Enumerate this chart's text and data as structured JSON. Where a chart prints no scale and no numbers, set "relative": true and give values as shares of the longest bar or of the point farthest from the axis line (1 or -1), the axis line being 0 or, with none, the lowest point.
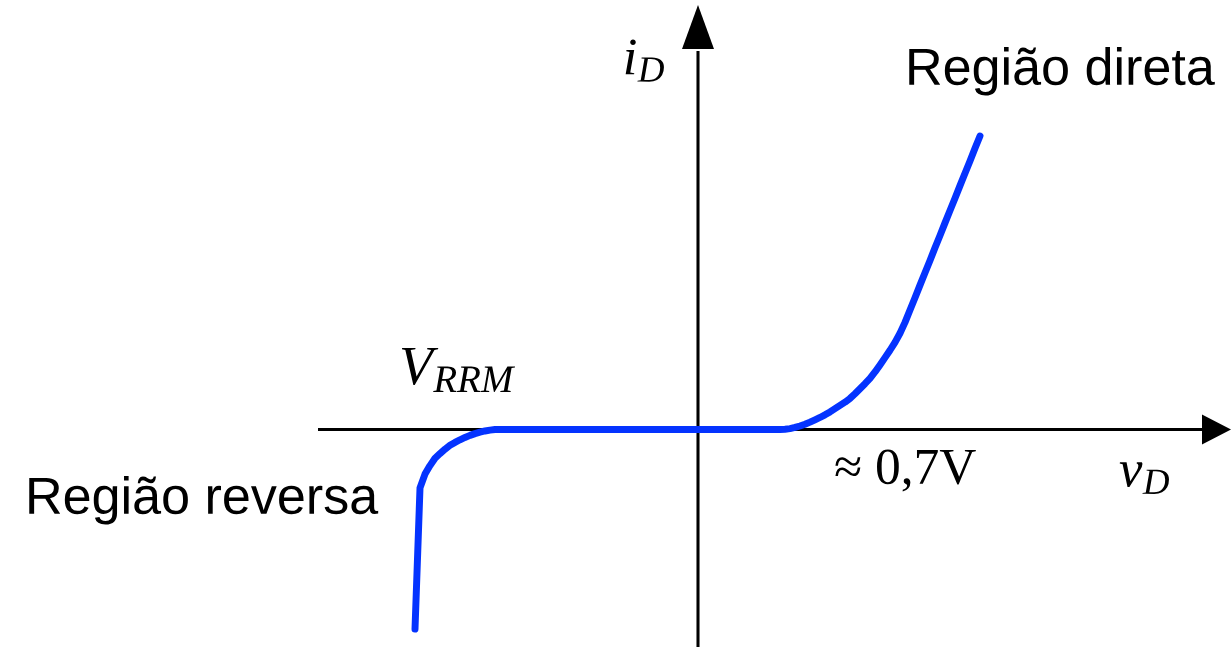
{
  "chart_data": {
    "type": "line",
    "relative": true,
    "xlabel": "v$_{D}$",
    "ylabel": "i$_{D}$",
    "line_style": "solid",
    "annotations": [
      "V$_{RRM}$",
      "≈ 0,7V",
      "Região direta",
      "Região reversa"
    ],
    "categories": [
      null,
      null,
      null,
      null,
      null,
      null,
      null,
      null,
      null,
      null,
      null,
      null,
      null,
      null,
      null,
      null,
      null,
      null,
      null,
      null,
      null,
      null,
      null,
      null,
      null,
      null,
      null,
      null,
      null,
      null,
      null,
      null,
      null,
      null,
      null,
      null,
      null,
      null,
      null,
      null,
      null,
      null,
      null,
      null,
      null,
      null,
      null,
      null,
      null,
      null,
      null,
      null,
      null,
      null,
      null,
      null,
      null,
      null,
      null,
      null,
      null,
      null,
      null,
      null,
      null,
      null,
      null,
      null,
      null,
      null,
      null,
      null,
      null,
      null,
      null,
      null,
      null,
      null,
      null,
      null,
      null,
      null,
      null,
      null,
      null,
      null,
      null,
      null,
      null,
      null,
      null,
      null,
      null,
      null,
      null,
      null,
      null,
      null,
      null,
      null,
      null,
      null,
      null,
      null,
      null,
      null,
      null,
      null,
      null,
      null,
      null,
      null,
      null,
      null
    ],
    "series": [
      {
        "color": "#0433ff",
        "values": [
          -0.68,
          -0.199,
          -0.152,
          -0.123,
          -0.098,
          -0.082,
          -0.067,
          -0.054,
          -0.044,
          -0.035,
          -0.027,
          -0.02,
          -0.014,
          -0.009,
          -0.005,
          -0.002,
          0,
          0,
          0,
          0,
          0,
          0,
          0,
          0,
          0,
          0,
          0,
          0,
          0,
          0,
          0,
          0,
          0,
          0,
          0,
          0,
          0,
          0,
          0,
          0,
          0,
          0,
          0,
          0,
          0,
          0,
          0,
          0,
          0,
          0,
          0,
          0,
          0,
          0,
          0,
          0,
          0,
          0,
          0,
          0,
          0,
          0,
          0,
          0,
          0,
          0,
          0,
          0,
          0,
          0,
          0,
          0,
          0,
          0,
          0.001,
          0.003,
          0.007,
          0.012,
          0.018,
          0.025,
          0.033,
          0.041,
          0.05,
          0.06,
          0.071,
          0.082,
          0.093,
          0.106,
          0.122,
          0.139,
          0.156,
          0.174,
          0.196,
          0.22,
          0.245,
          0.27,
          0.297,
          0.328,
          0.365,
          0.407,
          0.449,
          0.492,
          0.534,
          0.576,
          0.619,
          0.661,
          0.704,
          0.746,
          0.788,
          0.831,
          0.873,
          0.915,
          0.958,
          1
        ]
      }
    ]
  }
}
